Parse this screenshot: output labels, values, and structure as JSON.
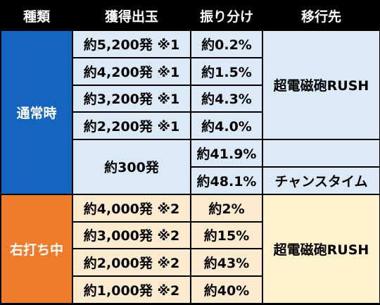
{
  "headers": {
    "type": "種類",
    "payout": "獲得出玉",
    "distribution": "振り分け",
    "transition": "移行先"
  },
  "normal": {
    "label": "通常時",
    "rows": [
      {
        "payout": "約5,200発 ※1",
        "pct": "約0.2%"
      },
      {
        "payout": "約4,200発 ※1",
        "pct": "約1.5%"
      },
      {
        "payout": "約3,200発 ※1",
        "pct": "約4.3%"
      },
      {
        "payout": "約2,200発 ※1",
        "pct": "約4.0%"
      }
    ],
    "rush_target": "超電磁砲RUSH",
    "small_payout": "約300発",
    "small_rows": [
      {
        "pct": "約41.9%",
        "target": ""
      },
      {
        "pct": "約48.1%",
        "target": "チャンスタイム"
      }
    ]
  },
  "right": {
    "label": "右打ち中",
    "rows": [
      {
        "payout": "約4,000発 ※2",
        "pct": "約2%"
      },
      {
        "payout": "約3,000発 ※2",
        "pct": "約15%"
      },
      {
        "payout": "約2,000発 ※2",
        "pct": "約43%"
      },
      {
        "payout": "約1,000発 ※2",
        "pct": "約40%"
      }
    ],
    "target": "超電磁砲RUSH"
  },
  "colors": {
    "normal": "#1565c0",
    "right": "#ee7c2b",
    "normal_cells": "#dce9f7",
    "right_cells": "#fdebd0",
    "right_target": "#fff2cc"
  }
}
